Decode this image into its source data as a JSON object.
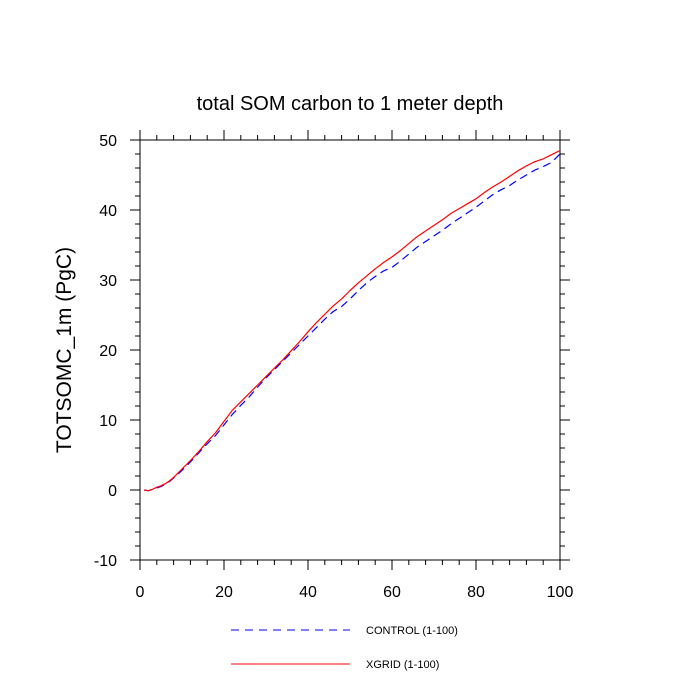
{
  "chart_data": {
    "type": "line",
    "title": "total SOM carbon to 1 meter depth",
    "xlabel": "",
    "ylabel": "TOTSOMC_1m  (PgC)",
    "xlim": [
      0,
      100
    ],
    "ylim": [
      -10,
      50
    ],
    "xticks": [
      0,
      20,
      40,
      60,
      80,
      100
    ],
    "yticks": [
      -10,
      0,
      10,
      20,
      30,
      40,
      50
    ],
    "xtick_labels": [
      "0",
      "20",
      "40",
      "60",
      "80",
      "100"
    ],
    "ytick_labels": [
      "-10",
      "0",
      "10",
      "20",
      "30",
      "40",
      "50"
    ],
    "series": [
      {
        "name": "CONTROL (1-100)",
        "color": "#0000ff",
        "dash": "dashed",
        "x": [
          1,
          2,
          3,
          4,
          5,
          6,
          7,
          8,
          10,
          12,
          14,
          16,
          18,
          20,
          22,
          24,
          26,
          28,
          30,
          32,
          34,
          36,
          38,
          40,
          42,
          44,
          46,
          48,
          50,
          52,
          54,
          56,
          58,
          60,
          62,
          64,
          66,
          68,
          70,
          72,
          74,
          76,
          78,
          80,
          82,
          84,
          86,
          88,
          90,
          92,
          94,
          96,
          98,
          100
        ],
        "values": [
          0.0,
          -0.1,
          0.1,
          0.3,
          0.5,
          0.8,
          1.2,
          1.7,
          2.8,
          4.0,
          5.3,
          6.6,
          7.8,
          9.3,
          10.8,
          12.1,
          13.3,
          14.7,
          16.0,
          17.2,
          18.4,
          19.6,
          20.8,
          22.0,
          23.2,
          24.4,
          25.5,
          26.2,
          27.3,
          28.5,
          29.6,
          30.5,
          31.3,
          31.8,
          32.7,
          33.7,
          34.7,
          35.5,
          36.3,
          37.1,
          38.0,
          38.8,
          39.6,
          40.4,
          41.3,
          42.2,
          42.9,
          43.5,
          44.3,
          45.0,
          45.7,
          46.2,
          46.8,
          48.0
        ]
      },
      {
        "name": "XGRID (1-100)",
        "color": "#ff0000",
        "dash": "solid",
        "x": [
          1,
          2,
          3,
          4,
          5,
          6,
          7,
          8,
          10,
          12,
          14,
          16,
          18,
          20,
          22,
          24,
          26,
          28,
          30,
          32,
          34,
          36,
          38,
          40,
          42,
          44,
          46,
          48,
          50,
          52,
          54,
          56,
          58,
          60,
          62,
          64,
          66,
          68,
          70,
          72,
          74,
          76,
          78,
          80,
          82,
          84,
          86,
          88,
          90,
          92,
          94,
          96,
          98,
          100
        ],
        "values": [
          0.0,
          -0.1,
          0.1,
          0.4,
          0.6,
          0.9,
          1.3,
          1.8,
          3.0,
          4.2,
          5.5,
          6.9,
          8.2,
          9.8,
          11.4,
          12.6,
          13.8,
          15.0,
          16.2,
          17.4,
          18.6,
          19.9,
          21.2,
          22.6,
          23.9,
          25.1,
          26.3,
          27.3,
          28.5,
          29.6,
          30.6,
          31.6,
          32.5,
          33.3,
          34.2,
          35.2,
          36.2,
          37.0,
          37.8,
          38.6,
          39.5,
          40.2,
          40.9,
          41.6,
          42.5,
          43.3,
          44.0,
          44.8,
          45.6,
          46.3,
          46.9,
          47.3,
          47.9,
          48.5
        ]
      }
    ],
    "legend": [
      {
        "label": "CONTROL (1-100)",
        "color": "#0000ff",
        "dash": "dashed"
      },
      {
        "label": "XGRID (1-100)",
        "color": "#ff0000",
        "dash": "solid"
      }
    ]
  }
}
